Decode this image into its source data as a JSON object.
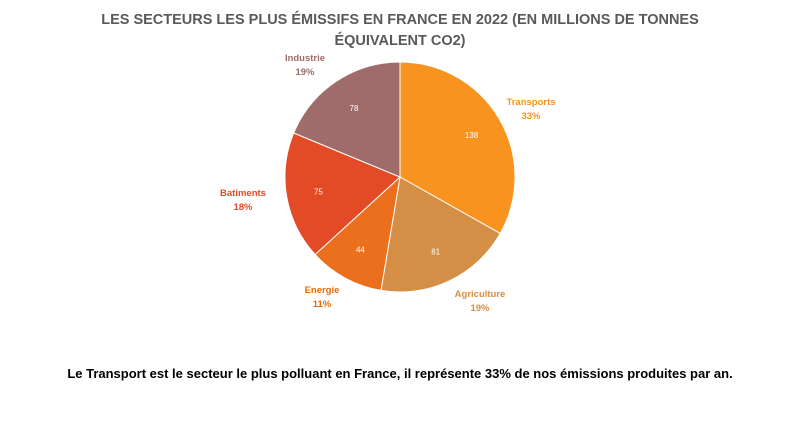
{
  "chart_data": {
    "type": "pie",
    "title_lines": [
      "LES SECTEURS LES PLUS ÉMISSIFS  EN FRANCE EN 2022 (EN MILLIONS  DE TONNES",
      "ÉQUIVALENT CO2)"
    ],
    "slices": [
      {
        "label": "Transports",
        "value": 138,
        "percent": "33%",
        "color": "#F7931E",
        "label_color": "#F7931E"
      },
      {
        "label": "Agriculture",
        "value": 81,
        "percent": "19%",
        "color": "#D58E45",
        "label_color": "#D58E45"
      },
      {
        "label": "Energie",
        "value": 44,
        "percent": "11%",
        "color": "#EC6F1D",
        "label_color": "#E46C0A"
      },
      {
        "label": "Batiments",
        "value": 75,
        "percent": "18%",
        "color": "#E34A26",
        "label_color": "#E34A26"
      },
      {
        "label": "Industrie",
        "value": 78,
        "percent": "19%",
        "color": "#9F6B6B",
        "label_color": "#9F6B6B"
      }
    ]
  },
  "caption": "Le Transport est le secteur le plus polluant en France, il représente 33% de nos émissions produites par an."
}
